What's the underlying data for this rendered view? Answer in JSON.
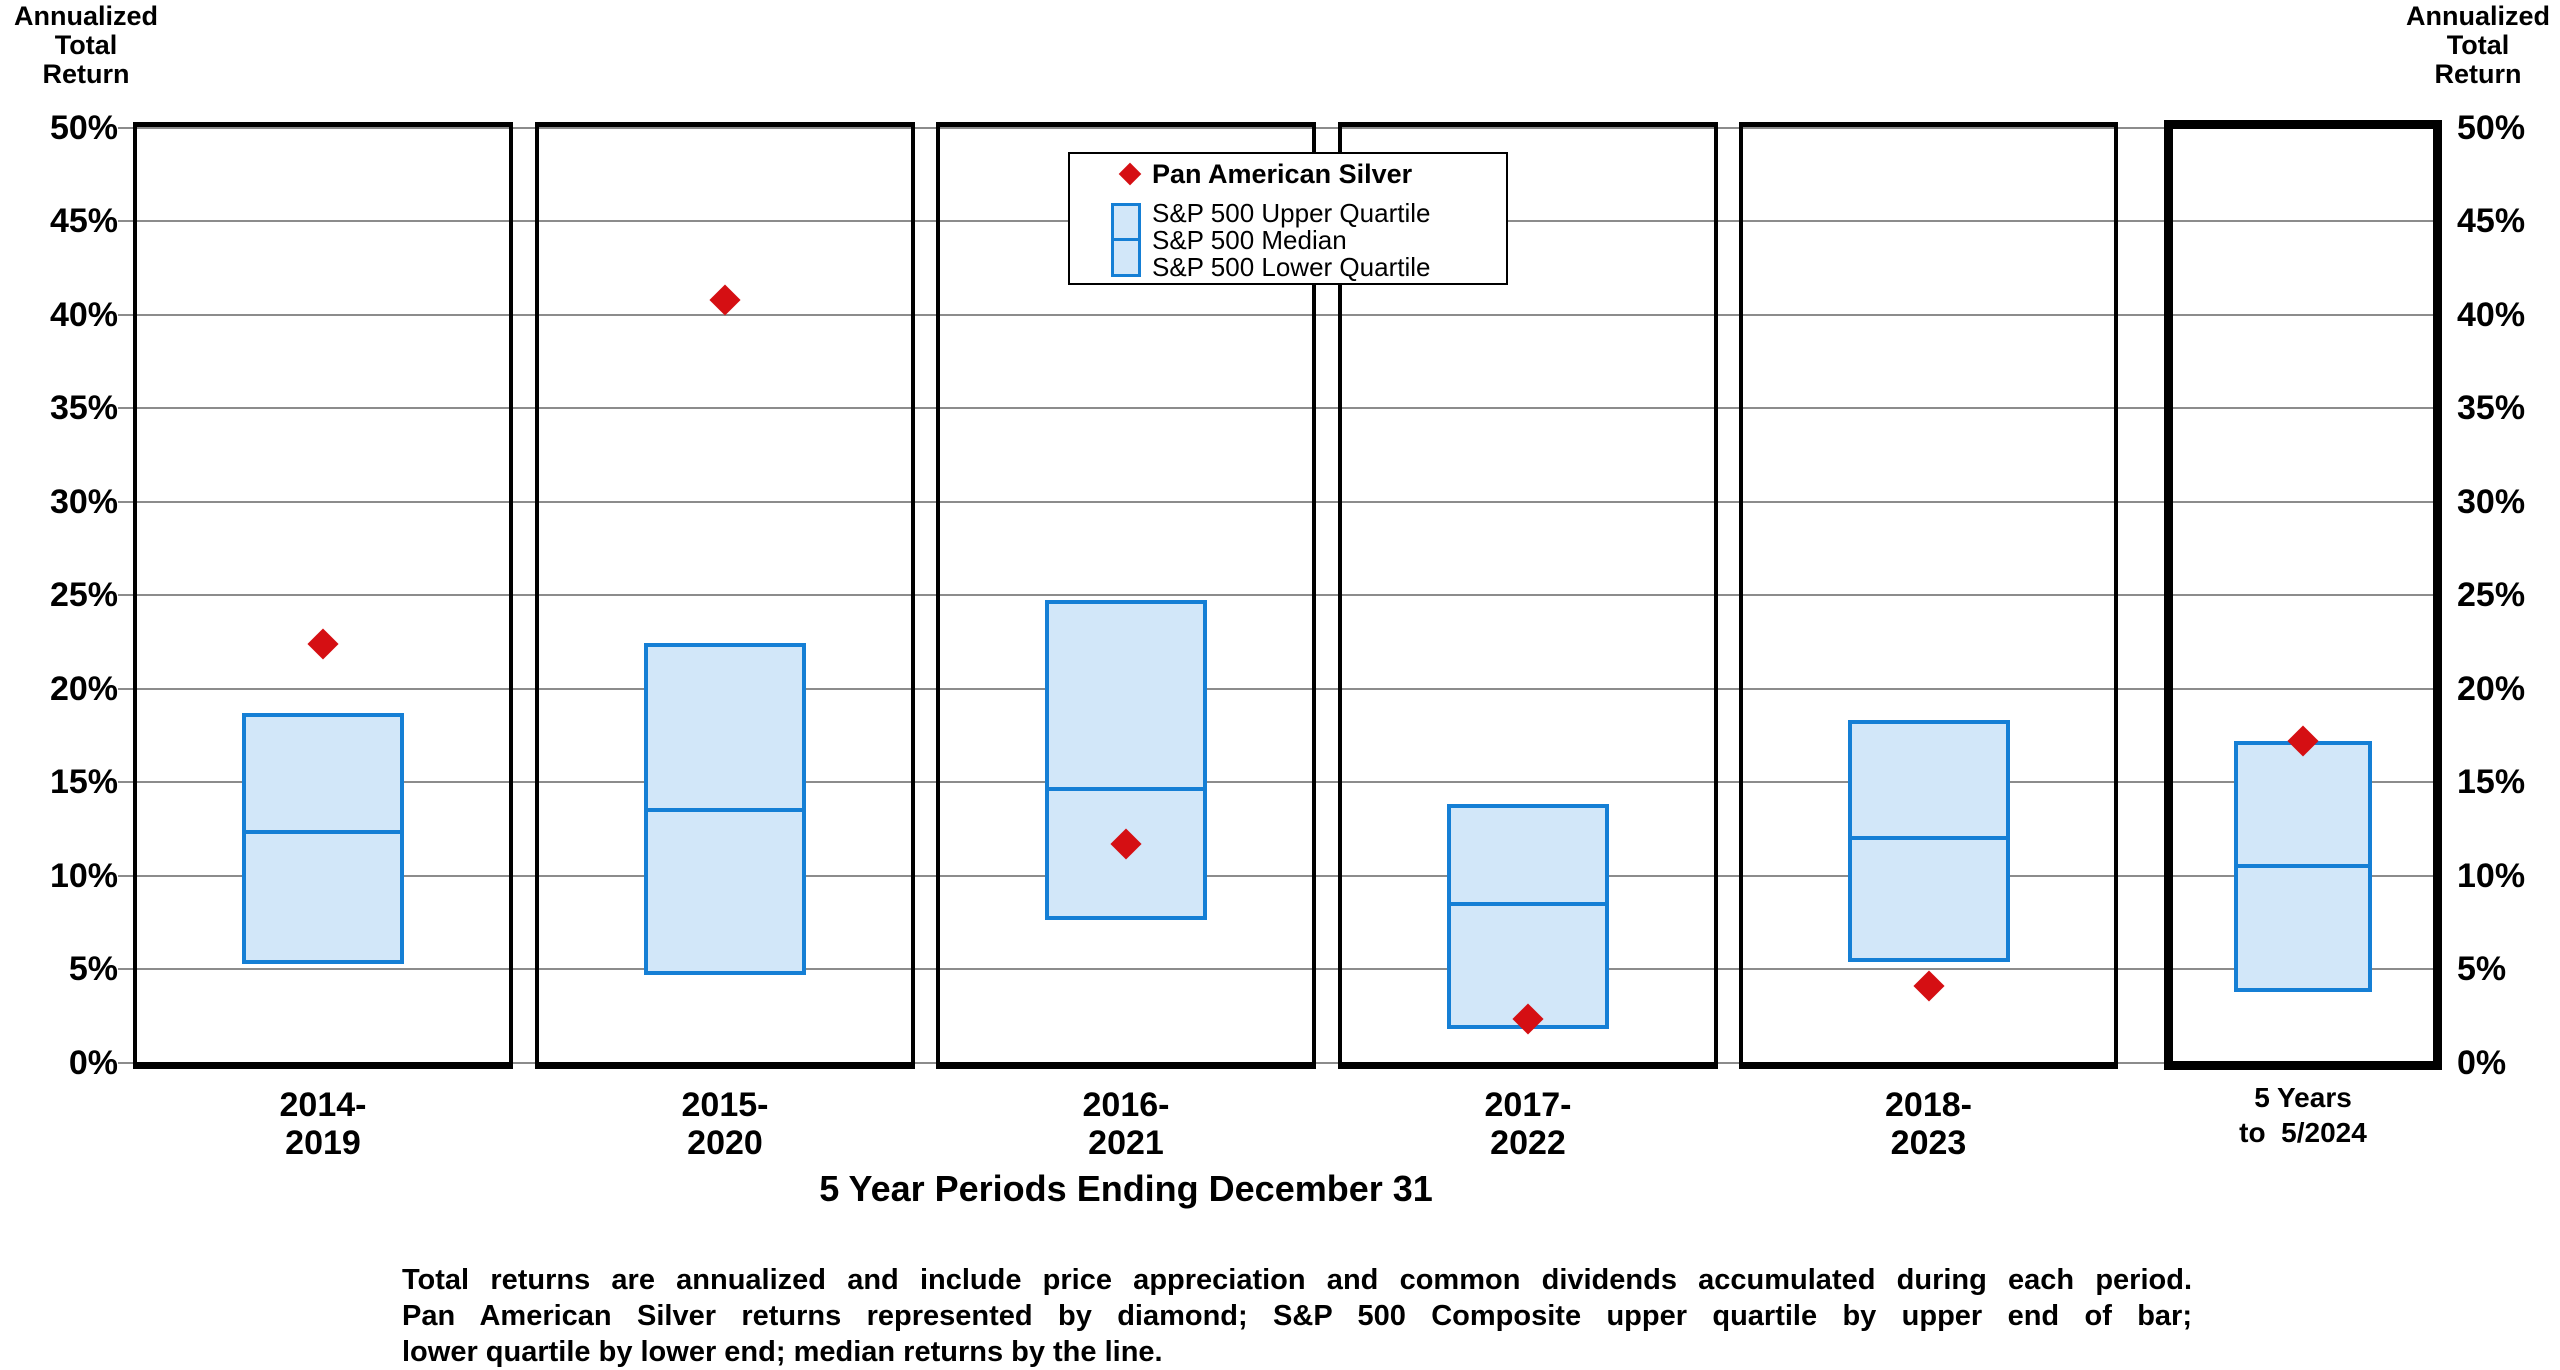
{
  "left_axis_title": "Annualized\nTotal\nReturn",
  "right_axis_title": "Annualized\nTotal\nReturn",
  "x_axis_title": "5 Year Periods Ending December 31",
  "legend": {
    "marker_label": "Pan American Silver",
    "items": [
      "S&P 500 Upper Quartile",
      "S&P 500 Median",
      "S&P 500 Lower Quartile"
    ]
  },
  "footnote_lines": [
    "Total returns are annualized and include price appreciation and common dividends accumulated during each period.",
    "Pan American Silver returns represented by diamond; S&P 500 Composite upper quartile by upper end of bar;",
    "lower quartile by lower end; median returns by the line."
  ],
  "colors": {
    "diamond": "#d50f13",
    "box_fill": "#d2e7f9",
    "box_border": "#157fd5",
    "gridline": "#8c8c8c",
    "frame": "#000000"
  },
  "chart_data": {
    "type": "box-with-marker",
    "title": "",
    "xlabel": "5 Year Periods Ending December 31",
    "ylabel": "Annualized Total Return",
    "marker_series": "Pan American Silver",
    "box_series": "S&P 500 quartiles (upper quartile = top of bar, lower quartile = bottom of bar, median = line)",
    "grid": "horizontal gridlines every 5%",
    "legend_position": "top-center",
    "y_axis": {
      "min": 0,
      "max": 50,
      "step": 5,
      "unit": "%",
      "tick_labels": [
        "50%",
        "45%",
        "40%",
        "35%",
        "30%",
        "25%",
        "20%",
        "15%",
        "10%",
        "5%",
        "0%"
      ]
    },
    "periods": [
      {
        "label_lines": [
          "2014-",
          "2019"
        ],
        "pan_american_silver": 22.4,
        "sp500_upper_quartile": 18.6,
        "sp500_median": 12.3,
        "sp500_lower_quartile": 5.4,
        "highlight": false
      },
      {
        "label_lines": [
          "2015-",
          "2020"
        ],
        "pan_american_silver": 40.8,
        "sp500_upper_quartile": 22.3,
        "sp500_median": 13.5,
        "sp500_lower_quartile": 4.8,
        "highlight": false
      },
      {
        "label_lines": [
          "2016-",
          "2021"
        ],
        "pan_american_silver": 11.7,
        "sp500_upper_quartile": 24.6,
        "sp500_median": 14.6,
        "sp500_lower_quartile": 7.7,
        "highlight": false
      },
      {
        "label_lines": [
          "2017-",
          "2022"
        ],
        "pan_american_silver": 2.3,
        "sp500_upper_quartile": 13.7,
        "sp500_median": 8.5,
        "sp500_lower_quartile": 1.9,
        "highlight": false
      },
      {
        "label_lines": [
          "2018-",
          "2023"
        ],
        "pan_american_silver": 4.1,
        "sp500_upper_quartile": 18.2,
        "sp500_median": 12.0,
        "sp500_lower_quartile": 5.5,
        "highlight": false
      },
      {
        "label_lines": [
          "5 Years",
          "to  5/2024"
        ],
        "pan_american_silver": 17.2,
        "sp500_upper_quartile": 17.1,
        "sp500_median": 10.5,
        "sp500_lower_quartile": 3.9,
        "highlight": true
      }
    ]
  }
}
